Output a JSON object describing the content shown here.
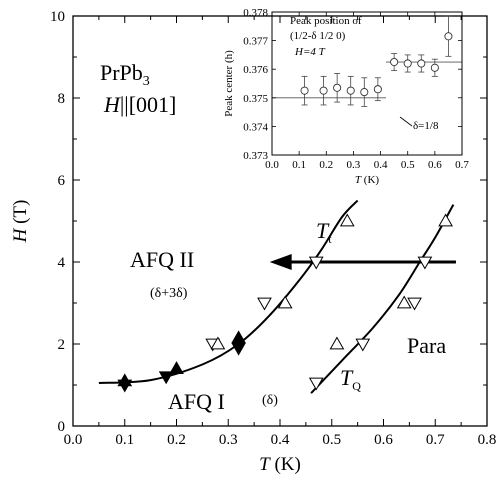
{
  "chart_data": [
    {
      "type": "scatter",
      "xlabel": "T (K)",
      "ylabel": "H (T)",
      "xlim": [
        0.0,
        0.8
      ],
      "ylim": [
        0,
        10
      ],
      "x_ticks": [
        "0.0",
        "0.1",
        "0.2",
        "0.3",
        "0.4",
        "0.5",
        "0.6",
        "0.7",
        "0.8"
      ],
      "y_ticks": [
        "0",
        "2",
        "4",
        "6",
        "8",
        "10"
      ],
      "annotations": {
        "compound": "PrPb",
        "compound_subscript": "3",
        "field_dir_h": "H",
        "field_dir_rest": "||[001]",
        "afq2": "AFQ II",
        "afq2_sub": "(δ+3δ)",
        "afq1": "AFQ I",
        "afq1_sub": "(δ)",
        "para": "Para",
        "tt": "T",
        "tt_sub": "t",
        "tq": "T",
        "tq_sub": "Q"
      },
      "series": [
        {
          "marker": "filled-triangle-up",
          "points": [
            [
              0.1,
              1.1
            ],
            [
              0.2,
              1.4
            ],
            [
              0.32,
              2.15
            ]
          ]
        },
        {
          "marker": "filled-triangle-down",
          "points": [
            [
              0.1,
              1.0
            ],
            [
              0.18,
              1.2
            ],
            [
              0.32,
              1.9
            ]
          ]
        },
        {
          "marker": "open-triangle-down",
          "points": [
            [
              0.27,
              2.0
            ],
            [
              0.37,
              3.0
            ],
            [
              0.47,
              4.0
            ],
            [
              0.56,
              2.0
            ],
            [
              0.47,
              1.05
            ],
            [
              0.66,
              3.0
            ],
            [
              0.68,
              4.0
            ]
          ]
        },
        {
          "marker": "open-triangle-up",
          "points": [
            [
              0.28,
              2.0
            ],
            [
              0.41,
              3.0
            ],
            [
              0.51,
              2.0
            ],
            [
              0.53,
              5.0
            ],
            [
              0.64,
              3.0
            ],
            [
              0.72,
              5.0
            ]
          ]
        }
      ],
      "lines": {
        "Tt": [
          [
            0.05,
            1.05
          ],
          [
            0.15,
            1.12
          ],
          [
            0.25,
            1.5
          ],
          [
            0.32,
            2.0
          ],
          [
            0.38,
            2.7
          ],
          [
            0.44,
            3.6
          ],
          [
            0.48,
            4.3
          ],
          [
            0.52,
            5.1
          ],
          [
            0.55,
            5.5
          ]
        ],
        "TQ": [
          [
            0.46,
            0.8
          ],
          [
            0.52,
            1.6
          ],
          [
            0.58,
            2.4
          ],
          [
            0.63,
            3.2
          ],
          [
            0.67,
            4.0
          ],
          [
            0.7,
            4.6
          ],
          [
            0.735,
            5.4
          ]
        ]
      },
      "arrow": {
        "from": [
          0.74,
          4.0
        ],
        "to": [
          0.38,
          4.0
        ]
      }
    },
    {
      "type": "scatter",
      "xlabel": "T (K)",
      "ylabel": "Peak center (h)",
      "xlim": [
        0.0,
        0.7
      ],
      "ylim": [
        0.373,
        0.378
      ],
      "x_ticks": [
        "0.0",
        "0.1",
        "0.2",
        "0.3",
        "0.4",
        "0.5",
        "0.6",
        "0.7"
      ],
      "y_ticks": [
        "0.373",
        "0.374",
        "0.375",
        "0.376",
        "0.377",
        "0.378"
      ],
      "title_lines": [
        "Peak position of",
        "(1/2-δ 1/2 0)"
      ],
      "field": "H=4 T",
      "ref_label": "δ=1/8",
      "hlines": [
        {
          "y": 0.375,
          "x": [
            0.0,
            0.42
          ]
        },
        {
          "y": 0.37625,
          "x": [
            0.42,
            0.7
          ]
        }
      ],
      "points": [
        {
          "x": 0.12,
          "y": 0.37525,
          "err": 0.0005
        },
        {
          "x": 0.19,
          "y": 0.37525,
          "err": 0.0005
        },
        {
          "x": 0.24,
          "y": 0.37535,
          "err": 0.0005
        },
        {
          "x": 0.29,
          "y": 0.37525,
          "err": 0.0005
        },
        {
          "x": 0.34,
          "y": 0.3752,
          "err": 0.0005
        },
        {
          "x": 0.39,
          "y": 0.3753,
          "err": 0.0004
        },
        {
          "x": 0.45,
          "y": 0.37625,
          "err": 0.0003
        },
        {
          "x": 0.5,
          "y": 0.3762,
          "err": 0.0003
        },
        {
          "x": 0.55,
          "y": 0.3762,
          "err": 0.0003
        },
        {
          "x": 0.6,
          "y": 0.37605,
          "err": 0.0003
        },
        {
          "x": 0.65,
          "y": 0.37715,
          "err": 0.0007
        }
      ]
    }
  ]
}
